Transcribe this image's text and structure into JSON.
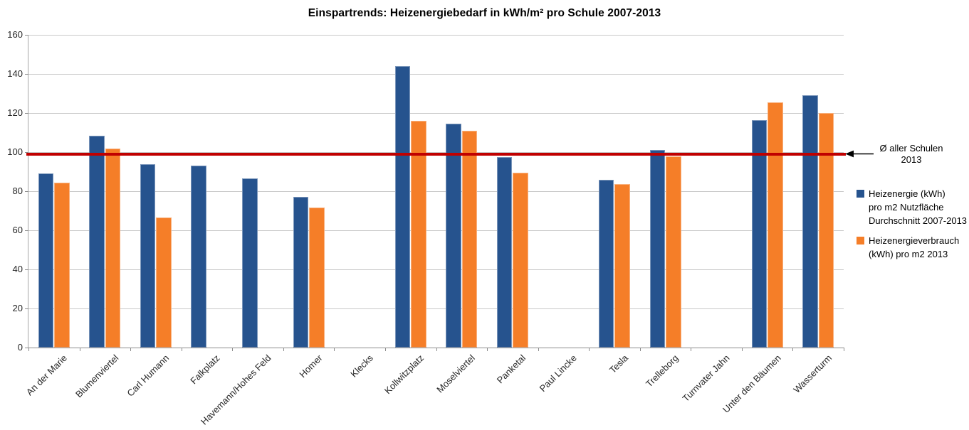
{
  "chart_data": {
    "type": "bar",
    "title": "Einspartrends: Heizenergiebedarf in kWh/m² pro Schule 2007-2013",
    "categories": [
      "An der Marie",
      "Blumenviertel",
      "Carl Humann",
      "Falkplatz",
      "Havemann/Hohes Feld",
      "Homer",
      "Klecks",
      "Kollwitzplatz",
      "Moselviertel",
      "Panketal",
      "Paul Lincke",
      "Tesla",
      "Trelleborg",
      "Turnvater Jahn",
      "Unter den Bäumen",
      "Wasserturm"
    ],
    "series": [
      {
        "name": "Heizenergie (kWh) pro m2 Nutzfläche Durchschnitt 2007-2013",
        "legend_lines": [
          "Heizenergie (kWh)",
          "pro m2 Nutzfläche",
          "Durchschnitt 2007-2013"
        ],
        "color": "#26538E",
        "values": [
          89,
          108.5,
          94,
          93,
          86.5,
          77,
          null,
          144,
          114.5,
          97.5,
          null,
          86,
          101,
          null,
          116.5,
          129
        ]
      },
      {
        "name": "Heizenergieverbrauch (kWh) pro m2 2013",
        "legend_lines": [
          "Heizenergieverbrauch",
          "(kWh) pro m2 2013"
        ],
        "color": "#F57E28",
        "values": [
          84.5,
          102,
          66.5,
          null,
          null,
          71.5,
          null,
          116,
          111,
          89.5,
          null,
          83.5,
          98,
          null,
          125.5,
          120
        ]
      }
    ],
    "reference_line": {
      "value": 99,
      "color": "#C00000",
      "label": "Ø aller Schulen 2013",
      "label_lines": [
        "Ø aller Schulen",
        "2013"
      ]
    },
    "y_axis": {
      "min": 0,
      "max": 160,
      "step": 20
    },
    "grid": true,
    "legend_position": "right",
    "xlabel": "",
    "ylabel": ""
  }
}
